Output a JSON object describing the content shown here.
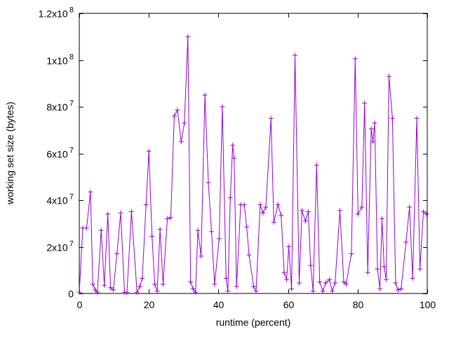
{
  "figure": {
    "background_color": "#ffffff",
    "axis_color": "#000000"
  },
  "chart_data": {
    "type": "line",
    "title": "",
    "xlabel": "runtime (percent)",
    "ylabel": "working set size (bytes)",
    "xlim": [
      0,
      100
    ],
    "ylim": [
      0,
      120000000
    ],
    "grid": false,
    "legend": "none",
    "line_color": "#9400d3",
    "marker": "plus",
    "marker_size": 7,
    "xticks": [
      {
        "value": 0,
        "label": "0"
      },
      {
        "value": 20,
        "label": "20"
      },
      {
        "value": 40,
        "label": "40"
      },
      {
        "value": 60,
        "label": "60"
      },
      {
        "value": 80,
        "label": "80"
      },
      {
        "value": 100,
        "label": "100"
      }
    ],
    "yticks": [
      {
        "value": 0,
        "mant": "0",
        "exp": ""
      },
      {
        "value": 20000000,
        "mant": "2x10",
        "exp": "7"
      },
      {
        "value": 40000000,
        "mant": "4x10",
        "exp": "7"
      },
      {
        "value": 60000000,
        "mant": "6x10",
        "exp": "7"
      },
      {
        "value": 80000000,
        "mant": "8x10",
        "exp": "7"
      },
      {
        "value": 100000000,
        "mant": "1x10",
        "exp": "8"
      },
      {
        "value": 120000000,
        "mant": "1.2x10",
        "exp": "8"
      }
    ],
    "points": [
      [
        0.0,
        500000
      ],
      [
        1.0,
        28000000
      ],
      [
        2.1,
        28000000
      ],
      [
        3.2,
        43500000
      ],
      [
        3.9,
        4000000
      ],
      [
        4.6,
        1500000
      ],
      [
        5.2,
        500000
      ],
      [
        6.3,
        27000000
      ],
      [
        7.2,
        3500000
      ],
      [
        8.2,
        34000000
      ],
      [
        9.0,
        2500000
      ],
      [
        9.8,
        1500000
      ],
      [
        10.8,
        17000000
      ],
      [
        11.9,
        34500000
      ],
      [
        13.0,
        500000
      ],
      [
        13.7,
        500000
      ],
      [
        15.0,
        35000000
      ],
      [
        16.6,
        500000
      ],
      [
        17.4,
        3000000
      ],
      [
        18.1,
        6500000
      ],
      [
        19.2,
        38000000
      ],
      [
        20.0,
        61000000
      ],
      [
        20.9,
        24500000
      ],
      [
        21.7,
        4000000
      ],
      [
        22.4,
        1000000
      ],
      [
        23.2,
        27500000
      ],
      [
        24.1,
        4000000
      ],
      [
        25.3,
        32000000
      ],
      [
        26.3,
        32500000
      ],
      [
        27.3,
        76000000
      ],
      [
        28.2,
        78500000
      ],
      [
        29.3,
        65000000
      ],
      [
        30.2,
        73000000
      ],
      [
        31.2,
        110000000
      ],
      [
        32.0,
        5000000
      ],
      [
        32.7,
        2000000
      ],
      [
        33.4,
        500000
      ],
      [
        34.1,
        27000000
      ],
      [
        35.0,
        16000000
      ],
      [
        36.1,
        85000000
      ],
      [
        37.1,
        47500000
      ],
      [
        38.0,
        26500000
      ],
      [
        38.9,
        4000000
      ],
      [
        40.2,
        23500000
      ],
      [
        41.1,
        80000000
      ],
      [
        42.2,
        6500000
      ],
      [
        42.7,
        1000000
      ],
      [
        43.4,
        41000000
      ],
      [
        44.1,
        63500000
      ],
      [
        44.5,
        58000000
      ],
      [
        45.2,
        3000000
      ],
      [
        46.4,
        38000000
      ],
      [
        47.4,
        38000000
      ],
      [
        48.1,
        28500000
      ],
      [
        48.8,
        16500000
      ],
      [
        50.1,
        3000000
      ],
      [
        50.8,
        1000000
      ],
      [
        52.0,
        38000000
      ],
      [
        52.8,
        34500000
      ],
      [
        53.6,
        37000000
      ],
      [
        55.1,
        75000000
      ],
      [
        55.9,
        30500000
      ],
      [
        57.1,
        38000000
      ],
      [
        58.0,
        33500000
      ],
      [
        58.9,
        9000000
      ],
      [
        59.6,
        6000000
      ],
      [
        60.2,
        20000000
      ],
      [
        61.0,
        2000000
      ],
      [
        62.0,
        102000000
      ],
      [
        63.2,
        4500000
      ],
      [
        64.0,
        35500000
      ],
      [
        65.0,
        31000000
      ],
      [
        65.8,
        35000000
      ],
      [
        66.5,
        12000000
      ],
      [
        67.2,
        1000000
      ],
      [
        68.2,
        55000000
      ],
      [
        69.1,
        5000000
      ],
      [
        70.0,
        1000000
      ],
      [
        70.8,
        4500000
      ],
      [
        71.9,
        6000000
      ],
      [
        72.7,
        1000000
      ],
      [
        73.5,
        4500000
      ],
      [
        74.9,
        35500000
      ],
      [
        76.0,
        5000000
      ],
      [
        76.7,
        4000000
      ],
      [
        78.2,
        17000000
      ],
      [
        79.3,
        100500000
      ],
      [
        80.1,
        34000000
      ],
      [
        81.2,
        37000000
      ],
      [
        82.0,
        81500000
      ],
      [
        82.9,
        9000000
      ],
      [
        83.9,
        70500000
      ],
      [
        84.4,
        65000000
      ],
      [
        84.9,
        73000000
      ],
      [
        85.7,
        10500000
      ],
      [
        86.4,
        2000000
      ],
      [
        87.0,
        32000000
      ],
      [
        87.6,
        11500000
      ],
      [
        88.2,
        6000000
      ],
      [
        89.0,
        93000000
      ],
      [
        90.0,
        75000000
      ],
      [
        90.9,
        4500000
      ],
      [
        91.6,
        1500000
      ],
      [
        92.5,
        2000000
      ],
      [
        93.9,
        22000000
      ],
      [
        94.9,
        37000000
      ],
      [
        95.8,
        6500000
      ],
      [
        97.0,
        75000000
      ],
      [
        97.9,
        10500000
      ],
      [
        98.9,
        35000000
      ],
      [
        99.8,
        34000000
      ]
    ]
  }
}
